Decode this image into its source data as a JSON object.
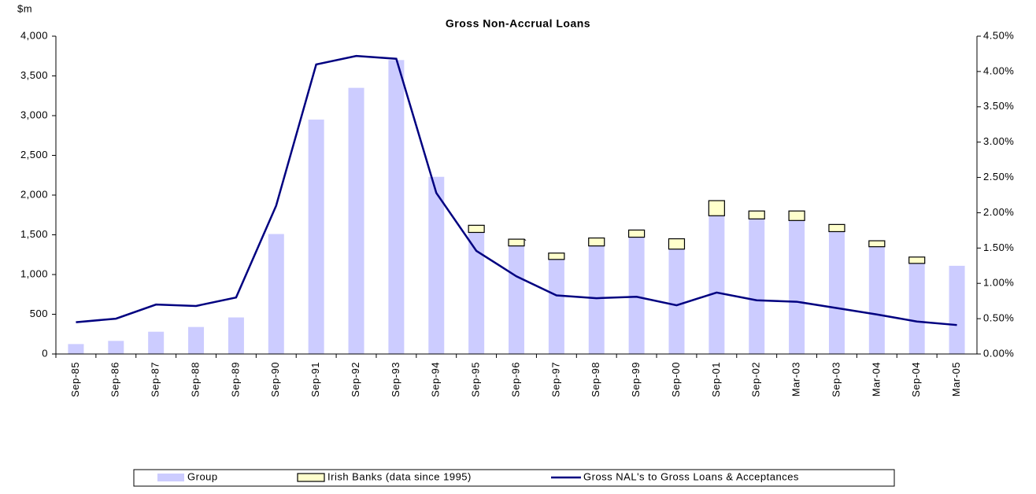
{
  "chart_data": {
    "type": "bar",
    "title": "Gross Non-Accrual Loans",
    "y_label": "$m",
    "annotation": "`",
    "categories": [
      "Sep-85",
      "Sep-86",
      "Sep-87",
      "Sep-88",
      "Sep-89",
      "Sep-90",
      "Sep-91",
      "Sep-92",
      "Sep-93",
      "Sep-94",
      "Sep-95",
      "Sep-96",
      "Sep-97",
      "Sep-98",
      "Sep-99",
      "Sep-00",
      "Sep-01",
      "Sep-02",
      "Mar-03",
      "Sep-03",
      "Mar-04",
      "Sep-04",
      "Mar-05"
    ],
    "series": [
      {
        "name": "Group",
        "color": "#ccccff",
        "kind": "bar",
        "values": [
          125,
          165,
          280,
          340,
          460,
          1510,
          2950,
          3350,
          3700,
          2230,
          1530,
          1360,
          1190,
          1360,
          1470,
          1320,
          1740,
          1700,
          1680,
          1540,
          1350,
          1140,
          1110
        ]
      },
      {
        "name": "Irish Banks (data since 1995)",
        "color": "#ffffcc",
        "kind": "stack",
        "values": [
          null,
          null,
          null,
          null,
          null,
          null,
          null,
          null,
          null,
          null,
          90,
          85,
          80,
          100,
          90,
          130,
          190,
          100,
          120,
          90,
          75,
          80,
          null
        ]
      },
      {
        "name": "Gross NAL's to Gross Loans & Acceptances",
        "color": "#000080",
        "kind": "line",
        "axis": "y2",
        "values": [
          0.45,
          0.5,
          0.7,
          0.68,
          0.8,
          2.1,
          4.1,
          4.22,
          4.18,
          2.28,
          1.46,
          1.1,
          0.83,
          0.79,
          0.81,
          0.69,
          0.87,
          0.76,
          0.74,
          0.65,
          0.56,
          0.46,
          0.41
        ]
      }
    ],
    "ylim": [
      0,
      4000
    ],
    "yticks": [
      0,
      500,
      {
        "value": 1000,
        "label": "1,000"
      },
      {
        "value": 1500,
        "label": "1,500"
      },
      {
        "value": 2000,
        "label": "2,000"
      },
      {
        "value": 2500,
        "label": "2,500"
      },
      {
        "value": 3000,
        "label": "3,000"
      },
      {
        "value": 3500,
        "label": "3,500"
      },
      {
        "value": 4000,
        "label": "4,000"
      }
    ],
    "y2lim": [
      0,
      4.5
    ],
    "y2ticks": [
      {
        "value": 0,
        "label": "0.00%"
      },
      {
        "value": 0.5,
        "label": "0.50%"
      },
      {
        "value": 1,
        "label": "1.00%"
      },
      {
        "value": 1.5,
        "label": "1.50%"
      },
      {
        "value": 2,
        "label": "2.00%"
      },
      {
        "value": 2.5,
        "label": "2.50%"
      },
      {
        "value": 3,
        "label": "3.00%"
      },
      {
        "value": 3.5,
        "label": "3.50%"
      },
      {
        "value": 4,
        "label": "4.00%"
      },
      {
        "value": 4.5,
        "label": "4.50%"
      }
    ],
    "legend": "bottom"
  }
}
